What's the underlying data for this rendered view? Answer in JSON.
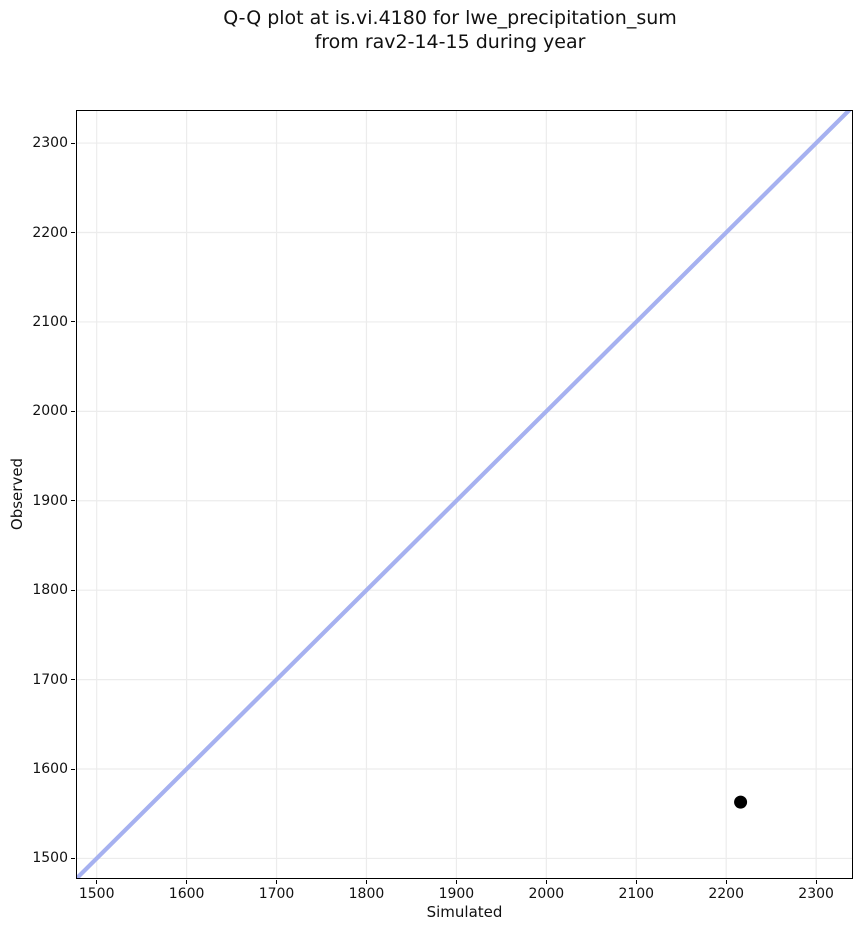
{
  "header": {
    "title_line1": "Q-Q plot at is.vi.4180 for lwe_precipitation_sum",
    "title_line2": "from rav2-14-15 during year"
  },
  "chart_data": {
    "type": "scatter",
    "title": "Q-Q plot at is.vi.4180 for lwe_precipitation_sum\nfrom rav2-14-15 during year",
    "xlabel": "Simulated",
    "ylabel": "Observed",
    "xlim": [
      1477,
      2341
    ],
    "ylim": [
      1477,
      2337
    ],
    "xticks": [
      1500,
      1600,
      1700,
      1800,
      1900,
      2000,
      2100,
      2200,
      2300
    ],
    "yticks": [
      1500,
      1600,
      1700,
      1800,
      1900,
      2000,
      2100,
      2200,
      2300
    ],
    "grid": true,
    "grid_color": "#ececec",
    "spine_color": "#000000",
    "identity_line": {
      "from": 1477,
      "to": 2343,
      "color": "#a6b1f0",
      "width": 4.2
    },
    "points": [
      {
        "x": 2216,
        "y": 1563
      }
    ],
    "point_color": "#000000",
    "marker_radius": 6.5
  }
}
